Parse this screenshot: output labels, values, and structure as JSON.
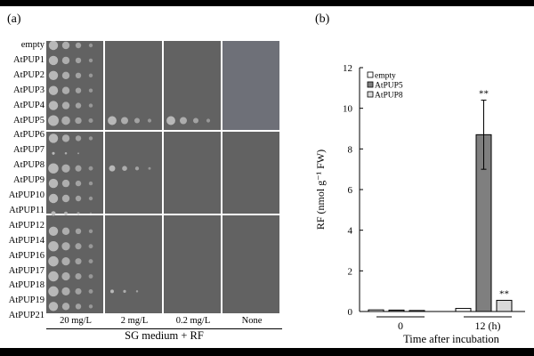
{
  "panel_a": {
    "label": "(a)",
    "rows": [
      "empty",
      "AtPUP1",
      "AtPUP2",
      "AtPUP3",
      "AtPUP4",
      "AtPUP5",
      "AtPUP6",
      "AtPUP7",
      "AtPUP8",
      "AtPUP9",
      "AtPUP10",
      "AtPUP11",
      "AtPUP12",
      "AtPUP14",
      "AtPUP16",
      "AtPUP17",
      "AtPUP18",
      "AtPUP19",
      "AtPUP21"
    ],
    "columns": [
      "20 mg/L",
      "2 mg/L",
      "0.2 mg/L",
      "None"
    ],
    "medium": "SG medium + RF"
  },
  "panel_b": {
    "label": "(b)",
    "chart_data": {
      "type": "bar",
      "categories": [
        "0",
        "12 (h)"
      ],
      "series": [
        {
          "name": "empty",
          "values": [
            0.08,
            0.15
          ],
          "errors": [
            0.03,
            0.05
          ],
          "color": "#ffffff"
        },
        {
          "name": "AtPUP5",
          "values": [
            0.07,
            8.7
          ],
          "errors": [
            0.03,
            1.7
          ],
          "color": "#7f7f7f"
        },
        {
          "name": "AtPUP8",
          "values": [
            0.05,
            0.55
          ],
          "errors": [
            0.02,
            0.06
          ],
          "color": "#d9d9d9"
        }
      ],
      "significance": [
        {
          "category": "12 (h)",
          "series": "AtPUP5",
          "label": "**"
        },
        {
          "category": "12 (h)",
          "series": "AtPUP8",
          "label": "**"
        }
      ],
      "ylabel": "RF (nmol g⁻¹ FW)",
      "xlabel": "Time after incubation",
      "ylim": [
        0,
        12
      ],
      "yticks": [
        0,
        2,
        4,
        6,
        8,
        10,
        12
      ],
      "legend_position": "top-left"
    }
  }
}
